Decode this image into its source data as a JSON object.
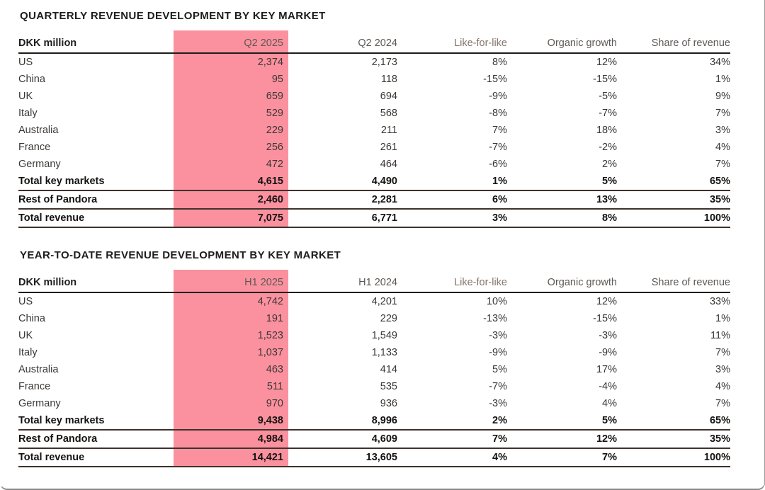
{
  "colors": {
    "highlight_pink": "#fb919f",
    "header_rule": "#1d1d1b",
    "total_rule": "#3e322c",
    "title_text": "#1d1d1b",
    "body_text": "#3b3734"
  },
  "tables": [
    {
      "title": "QUARTERLY REVENUE DEVELOPMENT BY KEY MARKET",
      "columns": [
        "DKK million",
        "Q2 2025",
        "Q2 2024",
        "Like-for-like",
        "Organic growth",
        "Share of revenue"
      ],
      "rows": [
        {
          "cells": [
            "US",
            "2,374",
            "2,173",
            "8%",
            "12%",
            "34%"
          ],
          "total": false
        },
        {
          "cells": [
            "China",
            "95",
            "118",
            "-15%",
            "-15%",
            "1%"
          ],
          "total": false
        },
        {
          "cells": [
            "UK",
            "659",
            "694",
            "-9%",
            "-5%",
            "9%"
          ],
          "total": false
        },
        {
          "cells": [
            "Italy",
            "529",
            "568",
            "-8%",
            "-7%",
            "7%"
          ],
          "total": false
        },
        {
          "cells": [
            "Australia",
            "229",
            "211",
            "7%",
            "18%",
            "3%"
          ],
          "total": false
        },
        {
          "cells": [
            "France",
            "256",
            "261",
            "-7%",
            "-2%",
            "4%"
          ],
          "total": false
        },
        {
          "cells": [
            "Germany",
            "472",
            "464",
            "-6%",
            "2%",
            "7%"
          ],
          "total": false
        },
        {
          "cells": [
            "Total key markets",
            "4,615",
            "4,490",
            "1%",
            "5%",
            "65%"
          ],
          "total": true
        },
        {
          "cells": [
            "Rest of Pandora",
            "2,460",
            "2,281",
            "6%",
            "13%",
            "35%"
          ],
          "total": true
        },
        {
          "cells": [
            "Total revenue",
            "7,075",
            "6,771",
            "3%",
            "8%",
            "100%"
          ],
          "total": true
        }
      ]
    },
    {
      "title": "YEAR-TO-DATE REVENUE DEVELOPMENT BY KEY MARKET",
      "columns": [
        "DKK million",
        "H1 2025",
        "H1 2024",
        "Like-for-like",
        "Organic growth",
        "Share of revenue"
      ],
      "rows": [
        {
          "cells": [
            "US",
            "4,742",
            "4,201",
            "10%",
            "12%",
            "33%"
          ],
          "total": false
        },
        {
          "cells": [
            "China",
            "191",
            "229",
            "-13%",
            "-15%",
            "1%"
          ],
          "total": false
        },
        {
          "cells": [
            "UK",
            "1,523",
            "1,549",
            "-3%",
            "-3%",
            "11%"
          ],
          "total": false
        },
        {
          "cells": [
            "Italy",
            "1,037",
            "1,133",
            "-9%",
            "-9%",
            "7%"
          ],
          "total": false
        },
        {
          "cells": [
            "Australia",
            "463",
            "414",
            "5%",
            "17%",
            "3%"
          ],
          "total": false
        },
        {
          "cells": [
            "France",
            "511",
            "535",
            "-7%",
            "-4%",
            "4%"
          ],
          "total": false
        },
        {
          "cells": [
            "Germany",
            "970",
            "936",
            "-3%",
            "4%",
            "7%"
          ],
          "total": false
        },
        {
          "cells": [
            "Total key markets",
            "9,438",
            "8,996",
            "2%",
            "5%",
            "65%"
          ],
          "total": true
        },
        {
          "cells": [
            "Rest of Pandora",
            "4,984",
            "4,609",
            "7%",
            "12%",
            "35%"
          ],
          "total": true
        },
        {
          "cells": [
            "Total revenue",
            "14,421",
            "13,605",
            "4%",
            "7%",
            "100%"
          ],
          "total": true
        }
      ]
    }
  ],
  "chart_data": [
    {
      "type": "table",
      "title": "QUARTERLY REVENUE DEVELOPMENT BY KEY MARKET",
      "unit": "DKK million",
      "columns": [
        "Q2 2025",
        "Q2 2024",
        "Like-for-like",
        "Organic growth",
        "Share of revenue"
      ],
      "categories": [
        "US",
        "China",
        "UK",
        "Italy",
        "Australia",
        "France",
        "Germany",
        "Total key markets",
        "Rest of Pandora",
        "Total revenue"
      ],
      "series": [
        {
          "name": "Q2 2025",
          "values": [
            2374,
            95,
            659,
            529,
            229,
            256,
            472,
            4615,
            2460,
            7075
          ]
        },
        {
          "name": "Q2 2024",
          "values": [
            2173,
            118,
            694,
            568,
            211,
            261,
            464,
            4490,
            2281,
            6771
          ]
        },
        {
          "name": "Like-for-like %",
          "values": [
            8,
            -15,
            -9,
            -8,
            7,
            -7,
            -6,
            1,
            6,
            3
          ]
        },
        {
          "name": "Organic growth %",
          "values": [
            12,
            -15,
            -5,
            -7,
            18,
            -2,
            2,
            5,
            13,
            8
          ]
        },
        {
          "name": "Share of revenue %",
          "values": [
            34,
            1,
            9,
            7,
            3,
            4,
            7,
            65,
            35,
            100
          ]
        }
      ]
    },
    {
      "type": "table",
      "title": "YEAR-TO-DATE REVENUE DEVELOPMENT BY KEY MARKET",
      "unit": "DKK million",
      "columns": [
        "H1 2025",
        "H1 2024",
        "Like-for-like",
        "Organic growth",
        "Share of revenue"
      ],
      "categories": [
        "US",
        "China",
        "UK",
        "Italy",
        "Australia",
        "France",
        "Germany",
        "Total key markets",
        "Rest of Pandora",
        "Total revenue"
      ],
      "series": [
        {
          "name": "H1 2025",
          "values": [
            4742,
            191,
            1523,
            1037,
            463,
            511,
            970,
            9438,
            4984,
            14421
          ]
        },
        {
          "name": "H1 2024",
          "values": [
            4201,
            229,
            1549,
            1133,
            414,
            535,
            936,
            8996,
            4609,
            13605
          ]
        },
        {
          "name": "Like-for-like %",
          "values": [
            10,
            -13,
            -3,
            -9,
            5,
            -7,
            -3,
            2,
            7,
            4
          ]
        },
        {
          "name": "Organic growth %",
          "values": [
            12,
            -15,
            -3,
            -9,
            17,
            -4,
            4,
            5,
            12,
            7
          ]
        },
        {
          "name": "Share of revenue %",
          "values": [
            33,
            1,
            11,
            7,
            3,
            4,
            7,
            65,
            35,
            100
          ]
        }
      ]
    }
  ]
}
